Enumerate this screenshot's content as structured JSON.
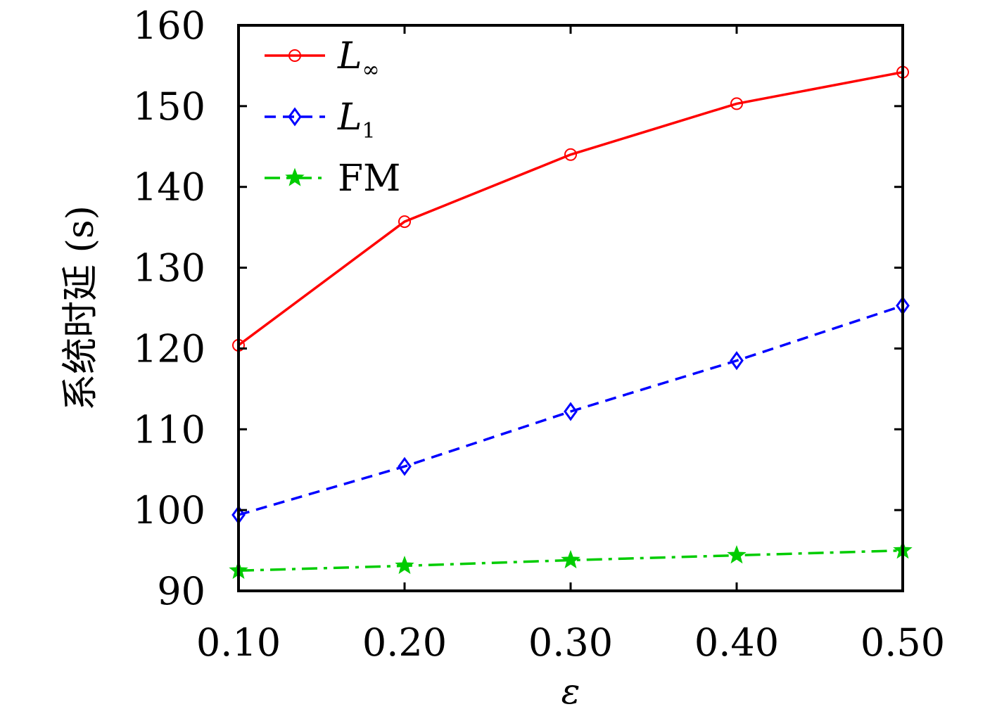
{
  "chart_data": {
    "type": "line",
    "xlabel": "ε",
    "ylabel": "系统时延 (s)",
    "x": [
      0.1,
      0.2,
      0.3,
      0.4,
      0.5
    ],
    "x_tick_labels": [
      "0.10",
      "0.20",
      "0.30",
      "0.40",
      "0.50"
    ],
    "xlim": [
      0.1,
      0.5
    ],
    "ylim": [
      90,
      160
    ],
    "y_ticks": [
      90,
      100,
      110,
      120,
      130,
      140,
      150,
      160
    ],
    "y_tick_labels": [
      "90",
      "100",
      "110",
      "120",
      "130",
      "140",
      "150",
      "160"
    ],
    "grid": false,
    "legend_position": "top-left",
    "series": [
      {
        "name": "L∞",
        "name_main": "L",
        "name_sub": "∞",
        "values": [
          120.4,
          135.7,
          144.0,
          150.3,
          154.2
        ],
        "color": "#ff0000",
        "line_style": "solid",
        "marker": "circle"
      },
      {
        "name": "L1",
        "name_main": "L",
        "name_sub": "1",
        "values": [
          99.4,
          105.4,
          112.2,
          118.5,
          125.3
        ],
        "color": "#0000ff",
        "line_style": "dashed",
        "marker": "diamond"
      },
      {
        "name": "FM",
        "name_main": "FM",
        "name_sub": "",
        "values": [
          92.5,
          93.1,
          93.8,
          94.4,
          95.0
        ],
        "color": "#00cc00",
        "line_style": "dash-dot",
        "marker": "star"
      }
    ]
  }
}
